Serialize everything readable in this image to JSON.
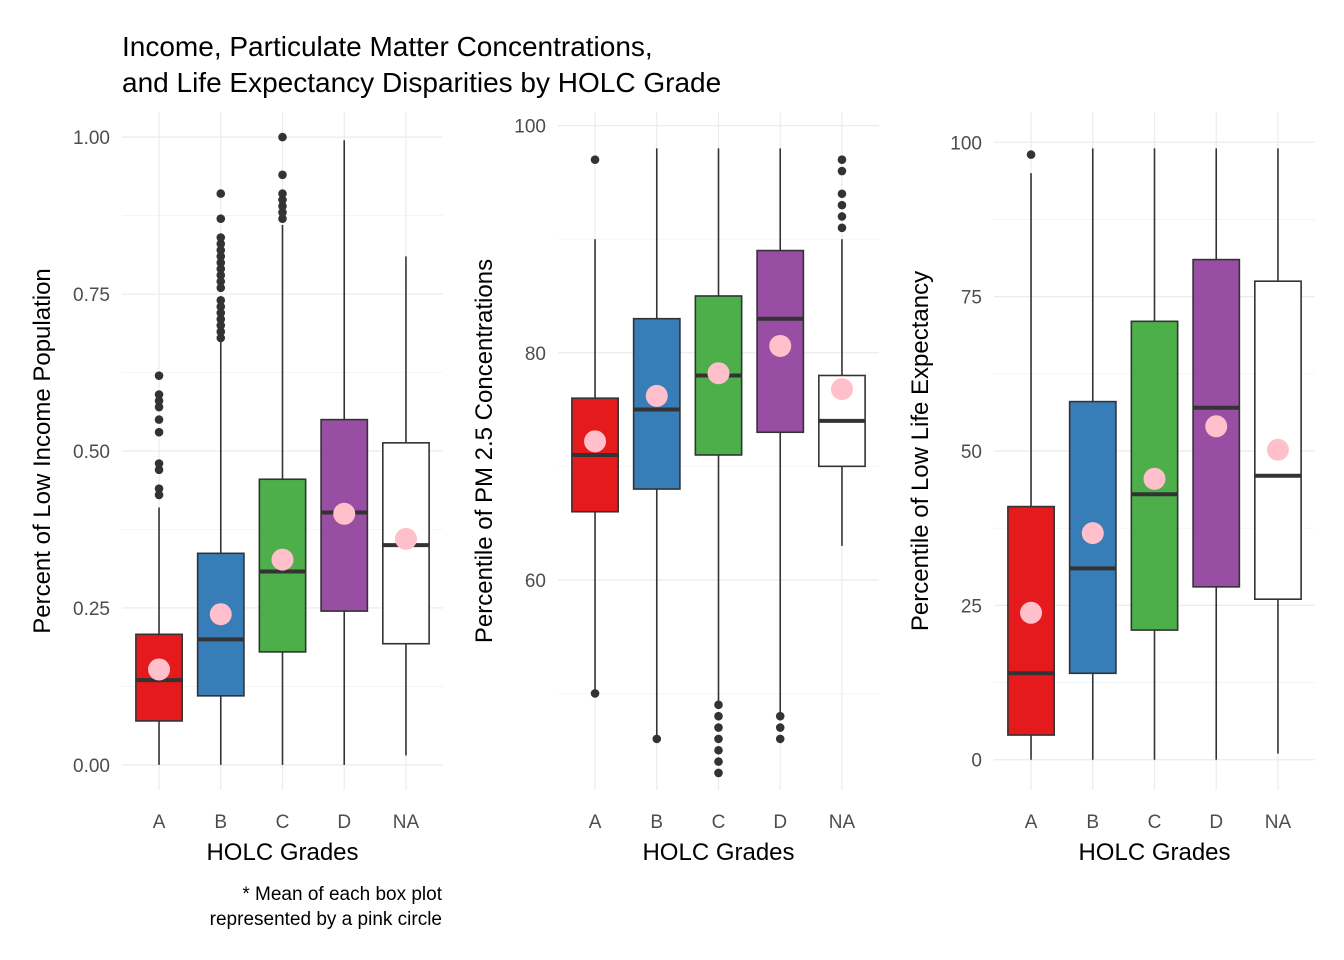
{
  "title_lines": [
    "Income, Particulate Matter Concentrations,",
    "and Life Expectancy Disparities by HOLC Grade"
  ],
  "caption_lines": [
    "* Mean of each box plot",
    "represented by a pink circle"
  ],
  "colors": {
    "A": "#e41a1c",
    "B": "#377eb8",
    "C": "#4daf4a",
    "D": "#984ea3",
    "NA": "#ffffff",
    "mean": "#ffc0cb",
    "outline": "#333333"
  },
  "chart_data": [
    {
      "type": "box",
      "xlabel": "HOLC Grades",
      "ylabel": "Percent of Low Income Population",
      "categories": [
        "A",
        "B",
        "C",
        "D",
        "NA"
      ],
      "ylim": [
        -0.04,
        1.04
      ],
      "yticks": [
        0,
        0.25,
        0.5,
        0.75,
        1.0
      ],
      "ytick_labels": [
        "0.00",
        "0.25",
        "0.50",
        "0.75",
        "1.00"
      ],
      "boxes": [
        {
          "grade": "A",
          "min": 0.0,
          "q1": 0.07,
          "median": 0.135,
          "q3": 0.208,
          "max": 0.41,
          "mean": 0.152,
          "outliers": [
            0.43,
            0.44,
            0.47,
            0.48,
            0.53,
            0.55,
            0.57,
            0.58,
            0.59,
            0.62
          ]
        },
        {
          "grade": "B",
          "min": 0.0,
          "q1": 0.11,
          "median": 0.2,
          "q3": 0.337,
          "max": 0.675,
          "mean": 0.24,
          "outliers": [
            0.68,
            0.69,
            0.7,
            0.71,
            0.72,
            0.73,
            0.74,
            0.76,
            0.77,
            0.78,
            0.79,
            0.8,
            0.81,
            0.82,
            0.83,
            0.84,
            0.87,
            0.91
          ]
        },
        {
          "grade": "C",
          "min": 0.0,
          "q1": 0.18,
          "median": 0.308,
          "q3": 0.455,
          "max": 0.86,
          "mean": 0.327,
          "outliers": [
            0.87,
            0.88,
            0.89,
            0.9,
            0.91,
            0.94,
            1.0
          ]
        },
        {
          "grade": "D",
          "min": 0.0,
          "q1": 0.245,
          "median": 0.402,
          "q3": 0.55,
          "max": 0.995,
          "mean": 0.4,
          "outliers": []
        },
        {
          "grade": "NA",
          "min": 0.015,
          "q1": 0.193,
          "median": 0.35,
          "q3": 0.513,
          "max": 0.81,
          "mean": 0.36,
          "outliers": []
        }
      ]
    },
    {
      "type": "box",
      "xlabel": "HOLC Grades",
      "ylabel": "Percentile of PM 2.5 Concentrations",
      "categories": [
        "A",
        "B",
        "C",
        "D",
        "NA"
      ],
      "ylim": [
        41.5,
        101.2
      ],
      "yticks": [
        60,
        80,
        100
      ],
      "ytick_labels": [
        "60",
        "80",
        "100"
      ],
      "boxes": [
        {
          "grade": "A",
          "min": 50,
          "q1": 66,
          "median": 71,
          "q3": 76,
          "max": 90,
          "mean": 72.2,
          "outliers": [
            50,
            97
          ]
        },
        {
          "grade": "B",
          "min": 46,
          "q1": 68,
          "median": 75,
          "q3": 83,
          "max": 98,
          "mean": 76.2,
          "outliers": [
            46
          ]
        },
        {
          "grade": "C",
          "min": 49,
          "q1": 71,
          "median": 78,
          "q3": 85,
          "max": 98,
          "mean": 78.2,
          "outliers": [
            43,
            44,
            45,
            46,
            47,
            48,
            49
          ]
        },
        {
          "grade": "D",
          "min": 48,
          "q1": 73,
          "median": 83,
          "q3": 89,
          "max": 98,
          "mean": 80.6,
          "outliers": [
            46,
            47,
            48
          ]
        },
        {
          "grade": "NA",
          "min": 63,
          "q1": 70,
          "median": 74,
          "q3": 78,
          "max": 90,
          "mean": 76.8,
          "outliers": [
            91,
            92,
            93,
            94,
            96,
            97
          ]
        }
      ]
    },
    {
      "type": "box",
      "xlabel": "HOLC Grades",
      "ylabel": "Percentile of Low Life Expectancy",
      "categories": [
        "A",
        "B",
        "C",
        "D",
        "NA"
      ],
      "ylim": [
        -4.9,
        104.9
      ],
      "yticks": [
        0,
        25,
        50,
        75,
        100
      ],
      "ytick_labels": [
        "0",
        "25",
        "50",
        "75",
        "100"
      ],
      "boxes": [
        {
          "grade": "A",
          "min": 0,
          "q1": 4,
          "median": 14,
          "q3": 41,
          "max": 95,
          "mean": 23.8,
          "outliers": [
            98
          ]
        },
        {
          "grade": "B",
          "min": 0,
          "q1": 14,
          "median": 31,
          "q3": 58,
          "max": 99,
          "mean": 36.7,
          "outliers": []
        },
        {
          "grade": "C",
          "min": 0,
          "q1": 21,
          "median": 43,
          "q3": 71,
          "max": 99,
          "mean": 45.5,
          "outliers": []
        },
        {
          "grade": "D",
          "min": 0,
          "q1": 28,
          "median": 57,
          "q3": 81,
          "max": 99,
          "mean": 54,
          "outliers": []
        },
        {
          "grade": "NA",
          "min": 1,
          "q1": 26,
          "median": 46,
          "q3": 77.5,
          "max": 99,
          "mean": 50.2,
          "outliers": []
        }
      ]
    }
  ]
}
